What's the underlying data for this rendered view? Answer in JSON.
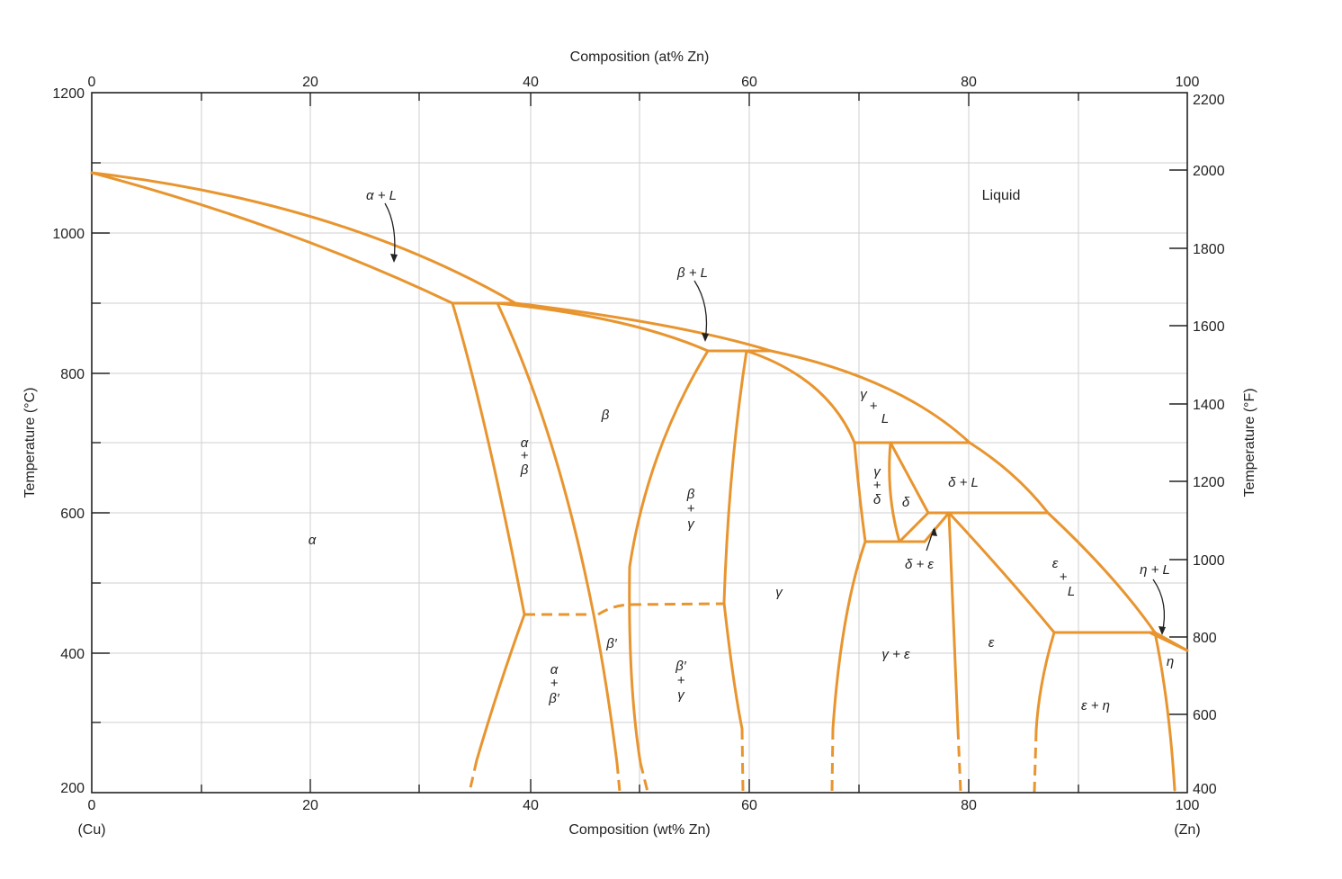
{
  "diagram": {
    "top_axis_title": "Composition (at% Zn)",
    "bottom_axis_title": "Composition (wt% Zn)",
    "left_axis_title": "Temperature (°C)",
    "right_axis_title": "Temperature (°F)",
    "element_left": "(Cu)",
    "element_right": "(Zn)",
    "top_ticks": [
      "0",
      "20",
      "40",
      "60",
      "80",
      "100"
    ],
    "bottom_ticks": [
      "0",
      "20",
      "40",
      "60",
      "80",
      "100"
    ],
    "left_ticks": [
      "1200",
      "1000",
      "800",
      "600",
      "400",
      "200"
    ],
    "right_ticks": [
      "2200",
      "2000",
      "1800",
      "1600",
      "1400",
      "1200",
      "1000",
      "800",
      "600",
      "400"
    ],
    "line_color": "#e8952f",
    "phase_labels": {
      "alpha_L": "α + L",
      "beta_L": "β + L",
      "liquid": "Liquid",
      "alpha": "α",
      "alpha_beta": [
        "α",
        "+",
        "β"
      ],
      "beta": "β",
      "beta_gamma": [
        "β",
        "+",
        "γ"
      ],
      "gamma": "γ",
      "gamma_L": [
        "γ",
        "+",
        "L"
      ],
      "gamma_delta": [
        "γ",
        "+",
        "δ"
      ],
      "delta": "δ",
      "delta_L": "δ + L",
      "delta_eps": "δ + ε",
      "eps_L": [
        "ε",
        "+",
        "L"
      ],
      "eta_L": "η + L",
      "eps": "ε",
      "eta": "η",
      "gamma_eps": "γ + ε",
      "eps_eta": "ε + η",
      "beta_prime": "β′",
      "alpha_beta_prime": [
        "α",
        "+",
        "β′"
      ],
      "beta_prime_gamma": [
        "β′",
        "+",
        "γ"
      ]
    }
  }
}
